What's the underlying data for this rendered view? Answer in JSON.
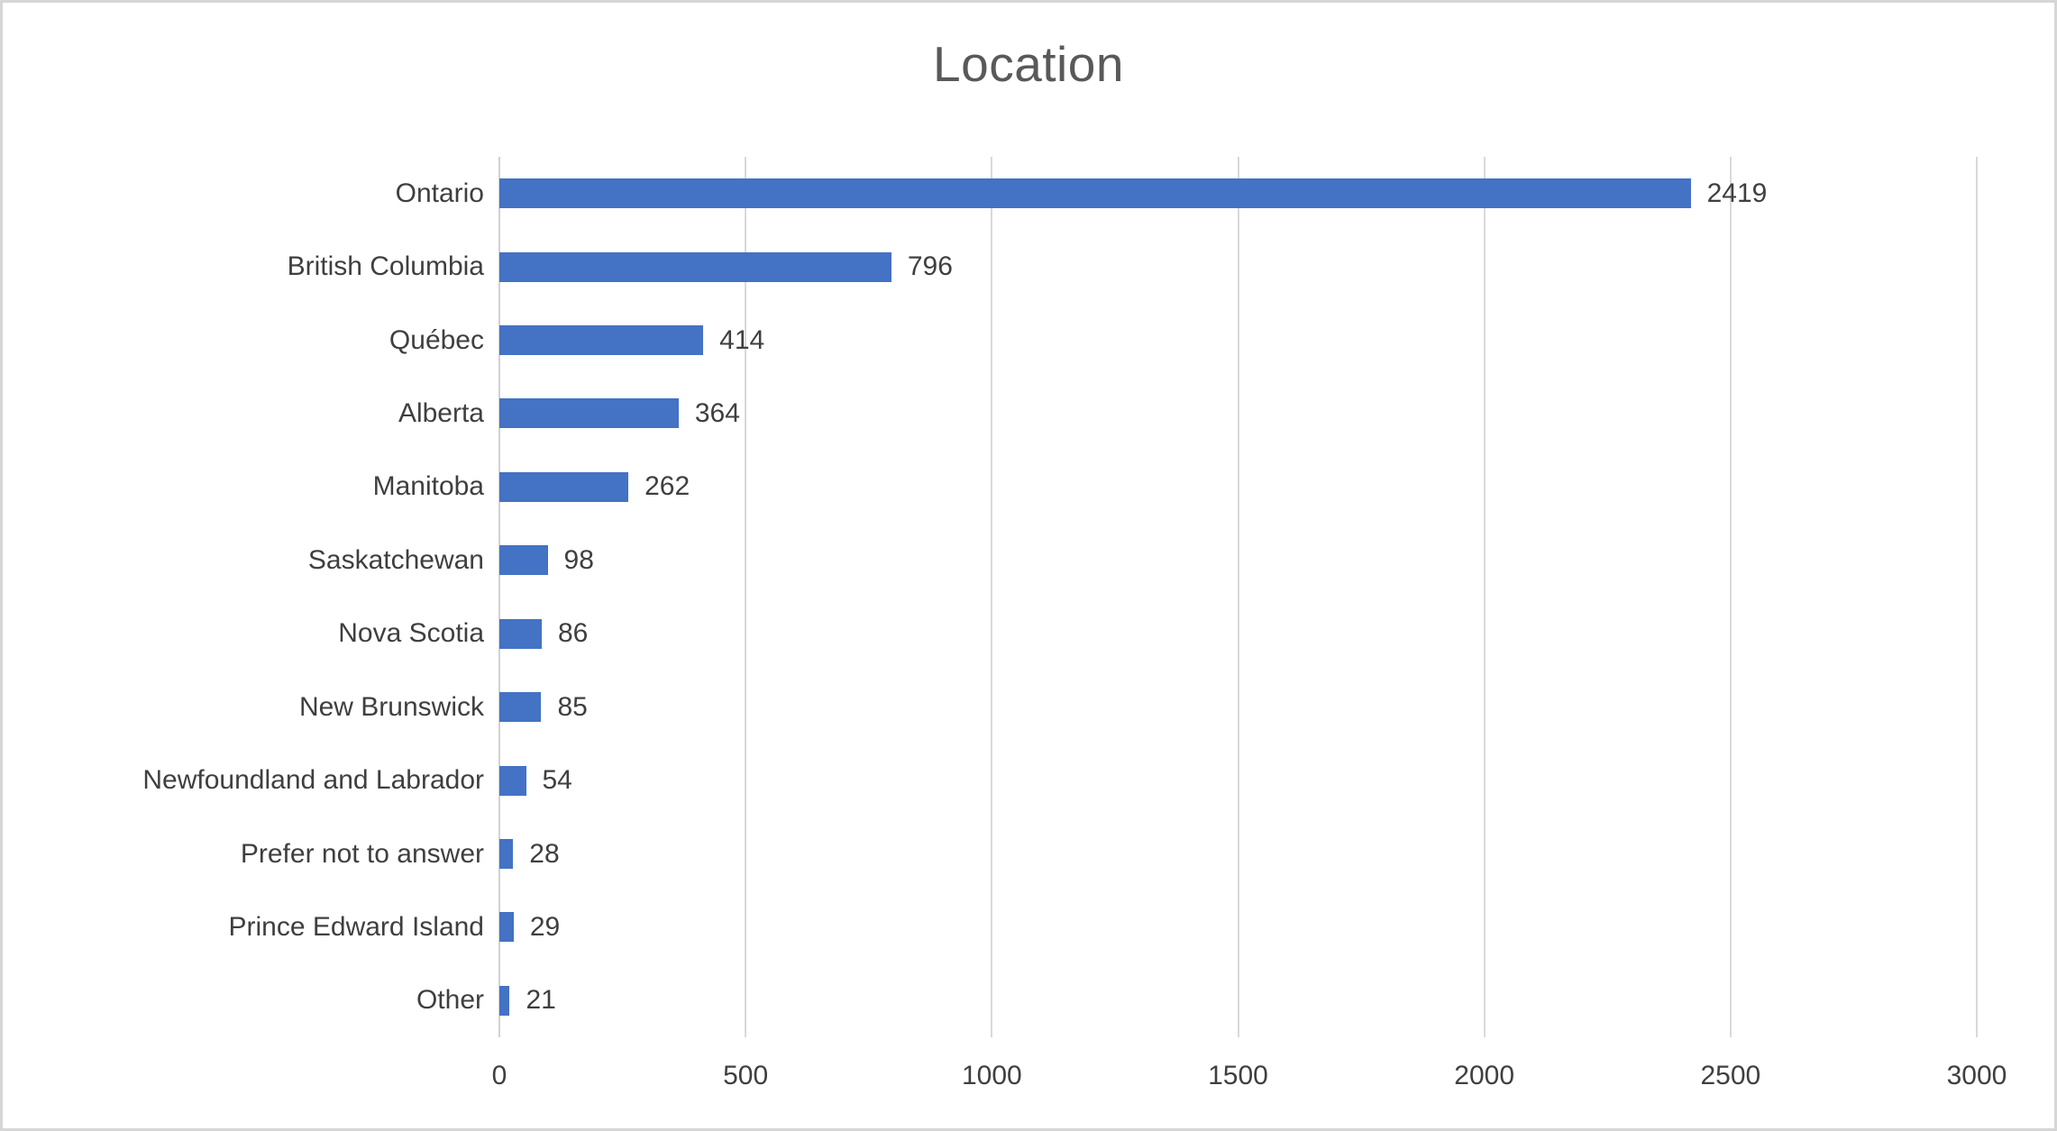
{
  "chart_data": {
    "type": "bar",
    "orientation": "horizontal",
    "title": "Location",
    "categories": [
      "Ontario",
      "British Columbia",
      "Québec",
      "Alberta",
      "Manitoba",
      "Saskatchewan",
      "Nova Scotia",
      "New Brunswick",
      "Newfoundland and Labrador",
      "Prefer not to answer",
      "Prince Edward Island",
      "Other"
    ],
    "values": [
      2419,
      796,
      414,
      364,
      262,
      98,
      86,
      85,
      54,
      28,
      29,
      21
    ],
    "xlim": [
      0,
      3000
    ],
    "x_ticks": [
      0,
      500,
      1000,
      1500,
      2000,
      2500,
      3000
    ],
    "grid": true,
    "legend_position": "none",
    "data_labels": true
  },
  "colors": {
    "bar": "#4472C4",
    "title_text": "#595959",
    "label_text": "#3F3F3F",
    "tick_text": "#3F3F3F",
    "gridline": "#D9D9D9",
    "axis_line": "#D2D2D2",
    "frame_border": "#D6D6D6",
    "background": "#FFFFFF"
  }
}
